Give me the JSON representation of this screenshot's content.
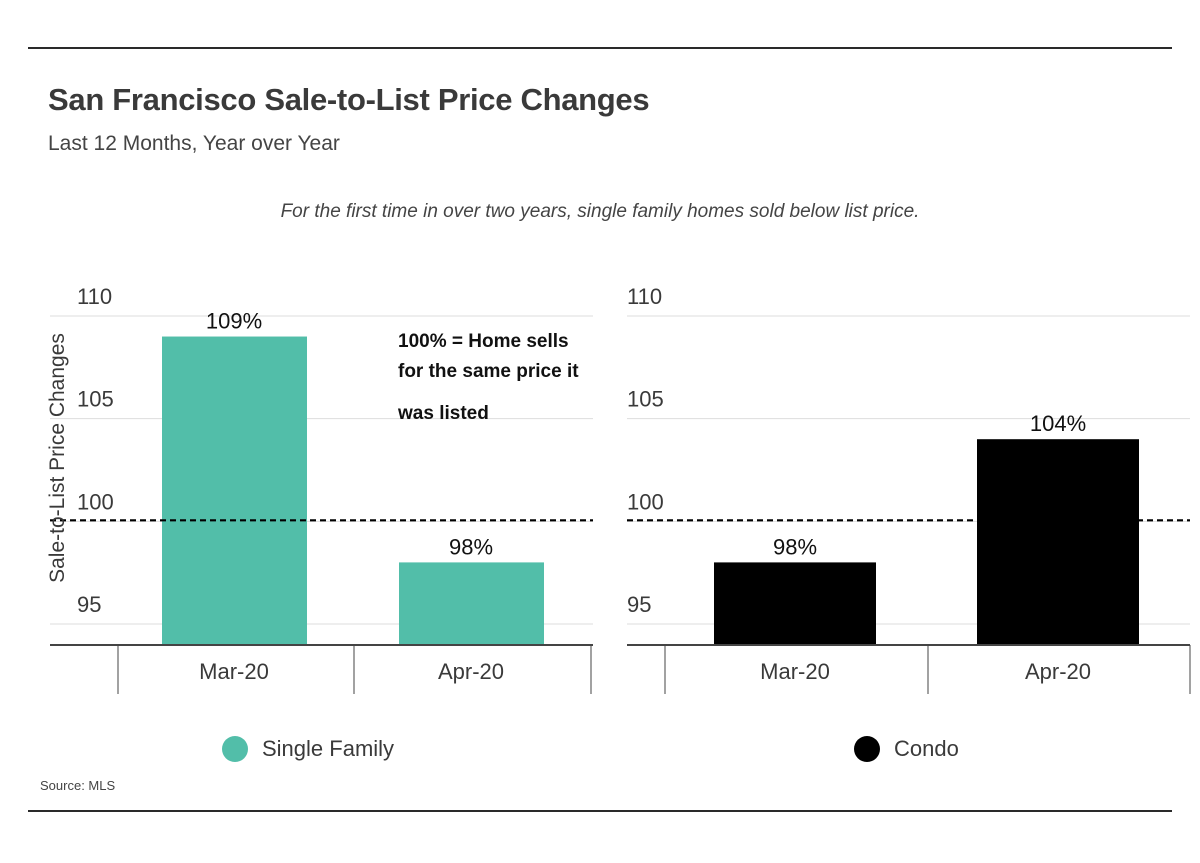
{
  "header": {
    "title": "San Francisco Sale-to-List Price Changes",
    "subtitle": "Last 12 Months, Year over Year",
    "annotation": "For the first time in over two years, single family homes sold below list price."
  },
  "footer": {
    "source": "Source: MLS"
  },
  "colors": {
    "single_family": "#52bea9",
    "condo": "#000000",
    "reference_line": "#000000",
    "grid": "#dddddd"
  },
  "chart_data": [
    {
      "type": "bar",
      "series_name": "Single Family",
      "categories": [
        "Mar-20",
        "Apr-20"
      ],
      "values": [
        109,
        98
      ],
      "data_labels": [
        "109%",
        "98%"
      ],
      "ylabel": "Sale-to-List Price Changes",
      "yticks": [
        "95",
        "100",
        "105",
        "110"
      ],
      "ylim": [
        94,
        111
      ],
      "reference_line": {
        "value": 100,
        "style": "dashed"
      },
      "note": "100% = Home sells for the same price it was listed",
      "note_lines": [
        "100% = Home sells",
        "for the same price it",
        "was listed"
      ],
      "grid": true
    },
    {
      "type": "bar",
      "series_name": "Condo",
      "categories": [
        "Mar-20",
        "Apr-20"
      ],
      "values": [
        98,
        104
      ],
      "data_labels": [
        "98%",
        "104%"
      ],
      "ylabel": "",
      "yticks": [
        "95",
        "100",
        "105",
        "110"
      ],
      "ylim": [
        94,
        111
      ],
      "reference_line": {
        "value": 100,
        "style": "dashed"
      },
      "grid": true
    }
  ],
  "legend": [
    {
      "label": "Single Family",
      "color": "#52bea9"
    },
    {
      "label": "Condo",
      "color": "#000000"
    }
  ]
}
